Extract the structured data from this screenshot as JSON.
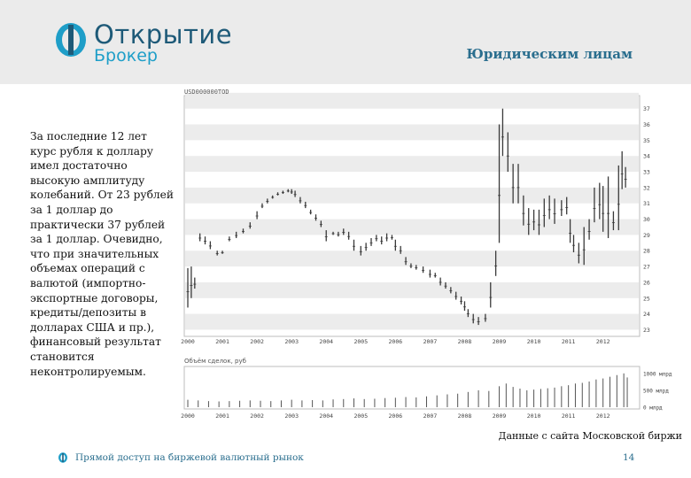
{
  "header": {
    "logo_name": "Открытие",
    "logo_sub": "Брокер",
    "section_title": "Юридическим лицам"
  },
  "body_text": "За последние 12 лет курс рубля к доллару имел достаточно высокую амплитуду колебаний. От 23 рублей за 1 доллар до практически 37 рублей за 1 доллар. Очевидно, что при значительных объемах операций с валютой (импортно-экспортные договоры, кредиты/депозиты в долларах США и пр.), финансовый результат становится неконтролируемым.",
  "caption": "Данные с сайта Московской биржи",
  "footer": {
    "link_text": "Прямой доступ на биржевой валютный рынок",
    "page_number": "14"
  },
  "colors": {
    "brand_dark": "#1e5a78",
    "brand_light": "#1e9ec8",
    "stripe": "#ececec",
    "bar": "#3a3a3a"
  },
  "chart_data": [
    {
      "type": "candlestick",
      "title": "USD000000TOD",
      "x_ticks": [
        "2000",
        "2001",
        "2002",
        "2003",
        "2004",
        "2005",
        "2006",
        "2007",
        "2008",
        "2009",
        "2010",
        "2011",
        "2012"
      ],
      "y_ticks": [
        23,
        24,
        25,
        26,
        27,
        28,
        29,
        30,
        31,
        32,
        33,
        34,
        35,
        36,
        37
      ],
      "ylim": [
        22.8,
        37.6
      ],
      "y_axis_side": "right",
      "grid": "horizontal-stripes",
      "series": [
        {
          "values": [
            [
              2000.0,
              24.4,
              26.9
            ],
            [
              2000.1,
              25.0,
              27.0
            ],
            [
              2000.2,
              25.6,
              26.3
            ],
            [
              2000.35,
              28.6,
              29.1
            ],
            [
              2000.5,
              28.4,
              28.9
            ],
            [
              2000.65,
              28.1,
              28.6
            ],
            [
              2000.85,
              27.7,
              28.0
            ],
            [
              2001.0,
              27.8,
              28.0
            ],
            [
              2001.2,
              28.6,
              28.9
            ],
            [
              2001.4,
              28.8,
              29.2
            ],
            [
              2001.6,
              29.1,
              29.4
            ],
            [
              2001.8,
              29.4,
              29.8
            ],
            [
              2002.0,
              30.0,
              30.5
            ],
            [
              2002.15,
              30.7,
              31.0
            ],
            [
              2002.3,
              31.0,
              31.3
            ],
            [
              2002.45,
              31.3,
              31.5
            ],
            [
              2002.6,
              31.5,
              31.7
            ],
            [
              2002.75,
              31.6,
              31.8
            ],
            [
              2002.9,
              31.7,
              31.9
            ],
            [
              2003.0,
              31.6,
              31.9
            ],
            [
              2003.1,
              31.4,
              31.8
            ],
            [
              2003.25,
              31.0,
              31.4
            ],
            [
              2003.4,
              30.7,
              31.1
            ],
            [
              2003.55,
              30.3,
              30.6
            ],
            [
              2003.7,
              29.9,
              30.3
            ],
            [
              2003.85,
              29.5,
              29.9
            ],
            [
              2004.0,
              28.6,
              29.3
            ],
            [
              2004.2,
              29.0,
              29.2
            ],
            [
              2004.35,
              28.9,
              29.2
            ],
            [
              2004.5,
              29.0,
              29.4
            ],
            [
              2004.65,
              28.7,
              29.2
            ],
            [
              2004.8,
              28.0,
              28.7
            ],
            [
              2005.0,
              27.7,
              28.3
            ],
            [
              2005.15,
              28.0,
              28.5
            ],
            [
              2005.3,
              28.3,
              28.8
            ],
            [
              2005.45,
              28.6,
              29.0
            ],
            [
              2005.6,
              28.4,
              28.9
            ],
            [
              2005.75,
              28.6,
              29.1
            ],
            [
              2005.9,
              28.7,
              29.0
            ],
            [
              2006.0,
              28.0,
              28.7
            ],
            [
              2006.15,
              27.8,
              28.3
            ],
            [
              2006.3,
              27.1,
              27.6
            ],
            [
              2006.45,
              26.9,
              27.2
            ],
            [
              2006.6,
              26.8,
              27.1
            ],
            [
              2006.8,
              26.6,
              27.0
            ],
            [
              2007.0,
              26.3,
              26.8
            ],
            [
              2007.15,
              26.3,
              26.6
            ],
            [
              2007.3,
              25.8,
              26.3
            ],
            [
              2007.45,
              25.6,
              26.0
            ],
            [
              2007.6,
              25.3,
              25.7
            ],
            [
              2007.75,
              24.9,
              25.4
            ],
            [
              2007.9,
              24.6,
              25.1
            ],
            [
              2008.0,
              24.2,
              24.8
            ],
            [
              2008.1,
              23.8,
              24.3
            ],
            [
              2008.25,
              23.4,
              24.0
            ],
            [
              2008.4,
              23.3,
              23.8
            ],
            [
              2008.6,
              23.5,
              24.0
            ],
            [
              2008.75,
              24.4,
              26.0
            ],
            [
              2008.9,
              26.4,
              28.0
            ],
            [
              2009.0,
              28.5,
              36.0
            ],
            [
              2009.1,
              34.0,
              37.0
            ],
            [
              2009.25,
              33.0,
              35.5
            ],
            [
              2009.4,
              31.0,
              33.5
            ],
            [
              2009.55,
              31.0,
              33.5
            ],
            [
              2009.7,
              29.6,
              31.5
            ],
            [
              2009.85,
              29.0,
              30.7
            ],
            [
              2010.0,
              29.3,
              30.6
            ],
            [
              2010.15,
              29.0,
              30.6
            ],
            [
              2010.3,
              29.5,
              31.3
            ],
            [
              2010.45,
              30.0,
              31.5
            ],
            [
              2010.6,
              29.7,
              31.3
            ],
            [
              2010.8,
              30.2,
              31.2
            ],
            [
              2010.95,
              30.3,
              31.4
            ],
            [
              2011.05,
              28.5,
              30.0
            ],
            [
              2011.15,
              27.9,
              29.0
            ],
            [
              2011.3,
              27.2,
              28.5
            ],
            [
              2011.45,
              27.1,
              29.5
            ],
            [
              2011.6,
              28.7,
              30.0
            ],
            [
              2011.75,
              29.8,
              32.0
            ],
            [
              2011.9,
              30.0,
              32.3
            ],
            [
              2012.0,
              29.2,
              32.1
            ],
            [
              2012.15,
              28.8,
              32.7
            ],
            [
              2012.3,
              29.3,
              30.5
            ],
            [
              2012.45,
              29.3,
              33.4
            ],
            [
              2012.55,
              31.9,
              34.3
            ],
            [
              2012.65,
              32.0,
              33.3
            ]
          ]
        }
      ]
    },
    {
      "type": "bar",
      "title": "Объём сделок, руб",
      "y_ticks": [
        "1000 млрд",
        "500 млрд",
        "0 млрд"
      ],
      "ylim": [
        0,
        1100
      ],
      "x_ticks": [
        "2000",
        "2001",
        "2002",
        "2003",
        "2004",
        "2005",
        "2006",
        "2007",
        "2008",
        "2009",
        "2010",
        "2011",
        "2012"
      ],
      "series": [
        {
          "values": [
            [
              2000.0,
              220
            ],
            [
              2000.3,
              200
            ],
            [
              2000.6,
              180
            ],
            [
              2000.9,
              170
            ],
            [
              2001.2,
              180
            ],
            [
              2001.5,
              190
            ],
            [
              2001.8,
              200
            ],
            [
              2002.1,
              190
            ],
            [
              2002.4,
              180
            ],
            [
              2002.7,
              200
            ],
            [
              2003.0,
              220
            ],
            [
              2003.3,
              200
            ],
            [
              2003.6,
              210
            ],
            [
              2003.9,
              200
            ],
            [
              2004.2,
              230
            ],
            [
              2004.5,
              240
            ],
            [
              2004.8,
              260
            ],
            [
              2005.1,
              240
            ],
            [
              2005.4,
              250
            ],
            [
              2005.7,
              270
            ],
            [
              2006.0,
              280
            ],
            [
              2006.3,
              300
            ],
            [
              2006.6,
              290
            ],
            [
              2006.9,
              320
            ],
            [
              2007.2,
              350
            ],
            [
              2007.5,
              380
            ],
            [
              2007.8,
              400
            ],
            [
              2008.1,
              450
            ],
            [
              2008.4,
              500
            ],
            [
              2008.7,
              480
            ],
            [
              2009.0,
              620
            ],
            [
              2009.2,
              700
            ],
            [
              2009.4,
              600
            ],
            [
              2009.6,
              550
            ],
            [
              2009.8,
              500
            ],
            [
              2010.0,
              520
            ],
            [
              2010.2,
              540
            ],
            [
              2010.4,
              560
            ],
            [
              2010.6,
              580
            ],
            [
              2010.8,
              620
            ],
            [
              2011.0,
              650
            ],
            [
              2011.2,
              700
            ],
            [
              2011.4,
              720
            ],
            [
              2011.6,
              760
            ],
            [
              2011.8,
              820
            ],
            [
              2012.0,
              850
            ],
            [
              2012.2,
              900
            ],
            [
              2012.4,
              950
            ],
            [
              2012.6,
              1000
            ],
            [
              2012.7,
              880
            ]
          ]
        }
      ]
    }
  ]
}
